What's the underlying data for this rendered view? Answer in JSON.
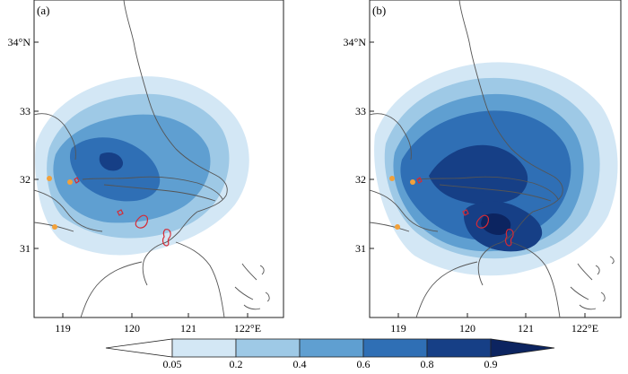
{
  "panels": [
    {
      "label": "(a)",
      "x_ticks": [
        "119",
        "120",
        "121",
        "122°E"
      ],
      "y_ticks": [
        "31",
        "32",
        "33",
        "34°N"
      ]
    },
    {
      "label": "(b)",
      "x_ticks": [
        "119",
        "120",
        "121",
        "122°E"
      ],
      "y_ticks": [
        "31",
        "32",
        "33",
        "34°N"
      ]
    }
  ],
  "colorbar": {
    "levels": [
      "0.05",
      "0.2",
      "0.4",
      "0.6",
      "0.8",
      "0.9"
    ],
    "colors": [
      "#ffffff",
      "#d3e7f5",
      "#9ec9e6",
      "#5f9fd1",
      "#2f6fb5",
      "#163f86",
      "#0c2460"
    ]
  },
  "marker_color": "#f2a13a",
  "outline_color": "#d62a35",
  "coast_color": "#555555"
}
